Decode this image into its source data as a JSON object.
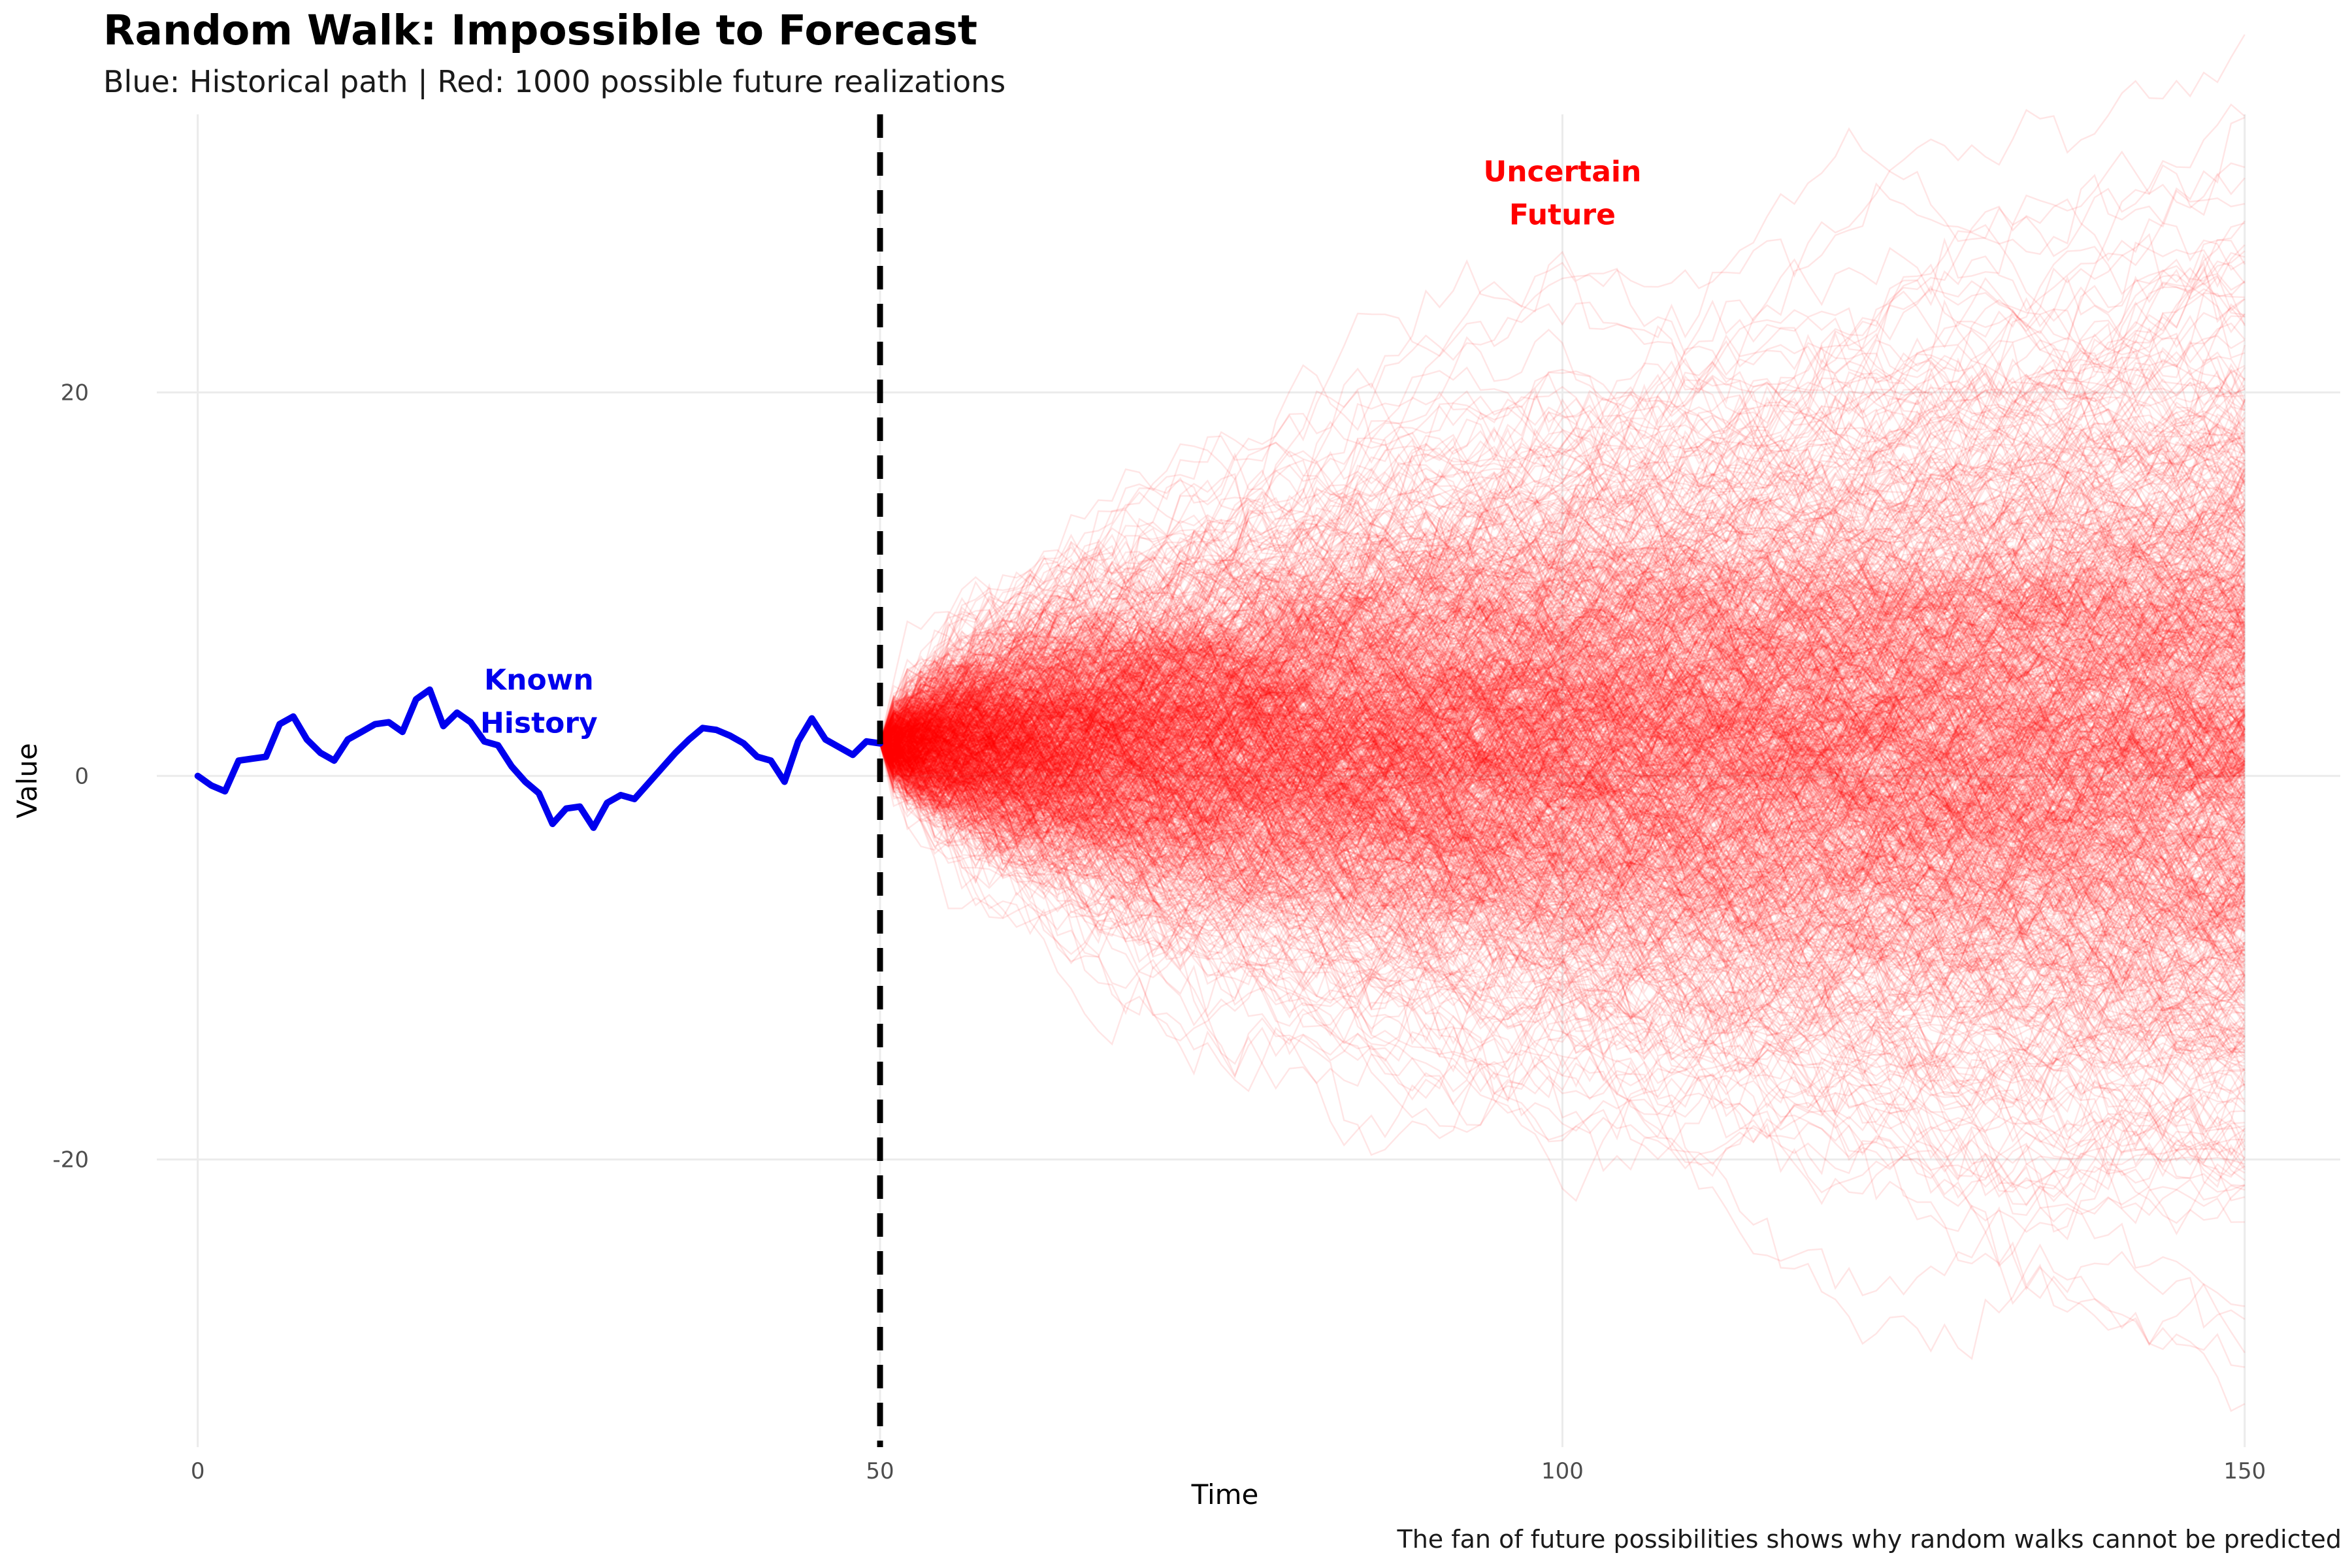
{
  "title": "Random Walk: Impossible to Forecast",
  "subtitle": "Blue: Historical path | Red: 1000 possible future realizations",
  "caption": "The fan of future possibilities shows why random walks cannot be predicted",
  "colors": {
    "history": "#0000ee",
    "futures": "#ff0000",
    "divider": "#000000",
    "grid": "#ebebeb"
  },
  "chart_data": {
    "type": "line",
    "xlabel": "Time",
    "ylabel": "Value",
    "xlim": [
      -3,
      157
    ],
    "ylim": [
      -35,
      34.5
    ],
    "x_ticks": [
      0,
      50,
      100,
      150
    ],
    "x_tick_labels": [
      "0",
      "50",
      "100",
      "150"
    ],
    "y_ticks": [
      -20,
      0,
      20
    ],
    "y_tick_labels": [
      "-20",
      "0",
      "20"
    ],
    "grid": true,
    "divider_x": 50,
    "series": [
      {
        "name": "history",
        "x": [
          0,
          1,
          2,
          3,
          4,
          5,
          6,
          7,
          8,
          9,
          10,
          11,
          12,
          13,
          14,
          15,
          16,
          17,
          18,
          19,
          20,
          21,
          22,
          23,
          24,
          25,
          26,
          27,
          28,
          29,
          30,
          31,
          32,
          33,
          34,
          35,
          36,
          37,
          38,
          39,
          40,
          41,
          42,
          43,
          44,
          45,
          46,
          47,
          48,
          49,
          50
        ],
        "y": [
          0,
          -0.5,
          -0.8,
          0.8,
          0.9,
          1.0,
          2.7,
          3.1,
          1.9,
          1.2,
          0.8,
          1.9,
          2.3,
          2.7,
          2.8,
          2.3,
          4.0,
          4.5,
          2.6,
          3.3,
          2.8,
          1.8,
          1.6,
          0.5,
          -0.3,
          -0.9,
          -2.5,
          -1.7,
          -1.6,
          -2.7,
          -1.4,
          -1.0,
          -1.2,
          -0.4,
          0.4,
          1.2,
          1.9,
          2.5,
          2.4,
          2.1,
          1.7,
          1.0,
          0.8,
          -0.3,
          1.8,
          3.0,
          1.9,
          1.5,
          1.1,
          1.8,
          1.7
        ]
      }
    ],
    "futures": {
      "count": 1000,
      "start_time": 50,
      "start_value": 1.7,
      "end_time": 150
    },
    "annotations": [
      {
        "lines": [
          "Known",
          "History"
        ],
        "x": 25,
        "y": 4.5,
        "color": "#0000ee"
      },
      {
        "lines": [
          "Uncertain",
          "Future"
        ],
        "x": 100,
        "y": 31,
        "color": "#ff0000"
      }
    ]
  }
}
